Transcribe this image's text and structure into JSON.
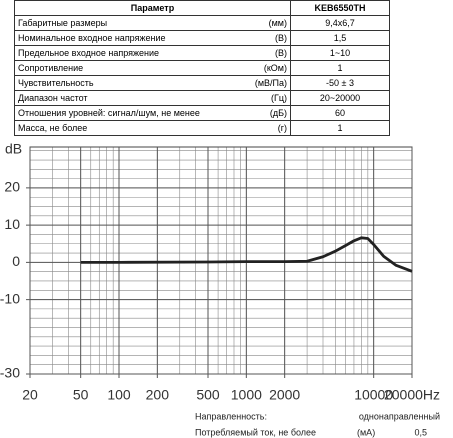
{
  "table": {
    "header": [
      "Параметр",
      "KEB6550TH"
    ],
    "rows": [
      [
        "Габаритные размеры",
        "(мм)",
        "9,4x6,7"
      ],
      [
        "Номинальное входное напряжение",
        "(В)",
        "1,5"
      ],
      [
        "Предельное входное напряжение",
        "(В)",
        "1~10"
      ],
      [
        "Сопротивление",
        "(кОм)",
        "1"
      ],
      [
        "Чувствительность",
        "(мВ/Па)",
        "-50 ± 3"
      ],
      [
        "Диапазон частот",
        "(Гц)",
        "20~20000"
      ],
      [
        "Отношения уровней: сигнал/шум, не менее",
        "(дБ)",
        "60"
      ],
      [
        "Масса, не более",
        "(г)",
        "1"
      ]
    ]
  },
  "chart_data": {
    "type": "line",
    "y_label": "dB",
    "log_x": true,
    "x": [
      50,
      100,
      500,
      1000,
      2000,
      3000,
      4000,
      5000,
      6000,
      7000,
      8000,
      9000,
      10000,
      12000,
      15000,
      20000
    ],
    "series": [
      {
        "color": "#222222",
        "values": [
          0,
          0,
          0.1,
          0.2,
          0.2,
          0.3,
          1.5,
          3,
          4.5,
          5.8,
          6.6,
          6.4,
          4.8,
          1.6,
          -0.8,
          -2.4
        ]
      }
    ],
    "xlim": [
      20,
      20000
    ],
    "ylim": [
      -30,
      31
    ],
    "xticks": [
      20,
      50,
      100,
      200,
      500,
      1000,
      2000,
      10000,
      {
        "value": 20000,
        "label": "20000Hz"
      }
    ],
    "yticks": [
      20,
      10,
      0,
      -10,
      -30
    ],
    "grid": true
  },
  "notes": [
    [
      "Направленность:",
      "",
      "однонаправленный"
    ],
    [
      "Потребляемый ток, не более",
      "(мА)",
      "0,5"
    ]
  ]
}
